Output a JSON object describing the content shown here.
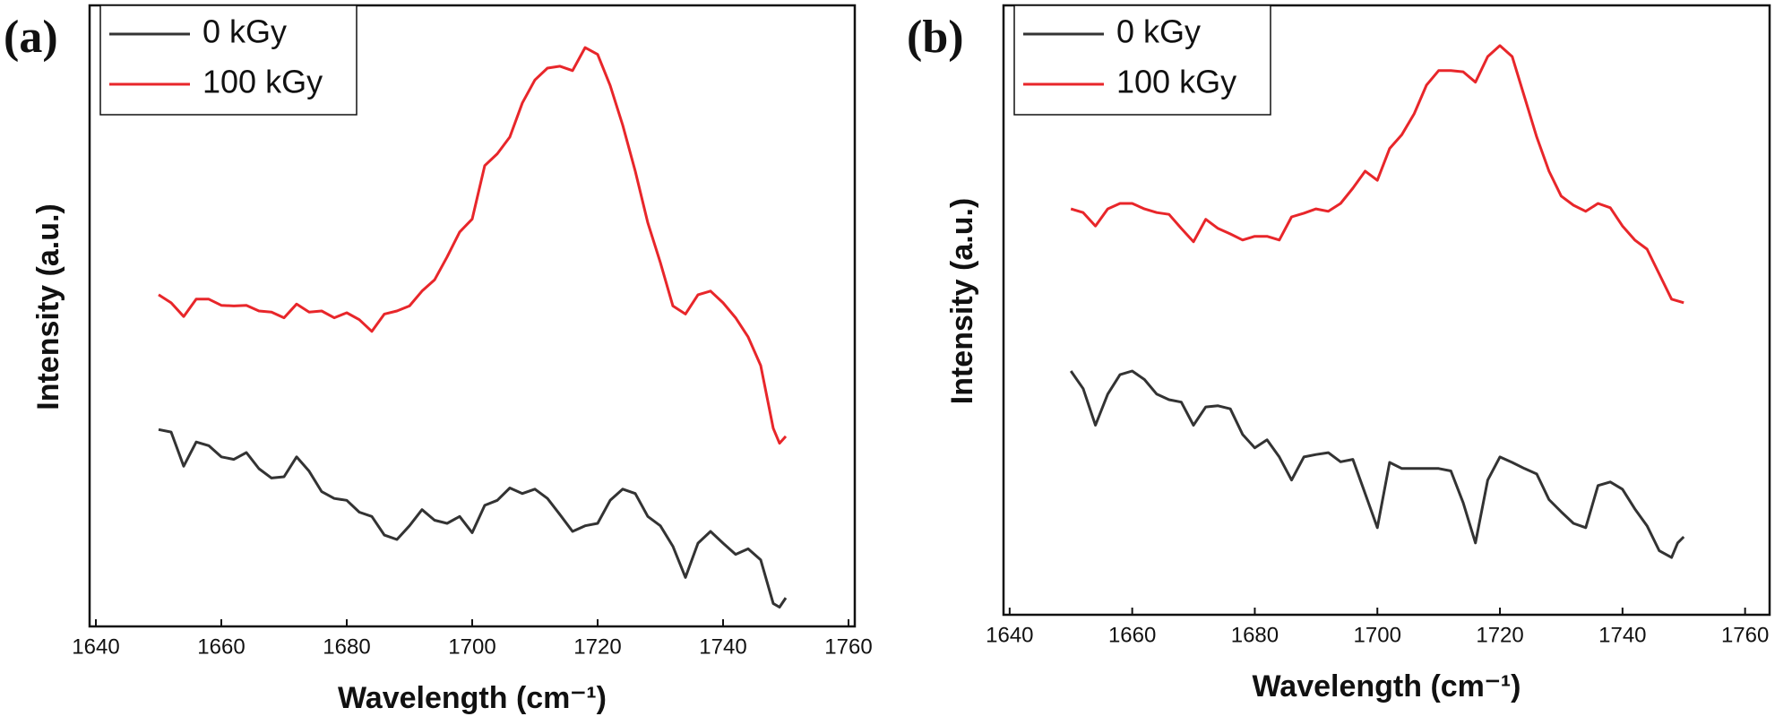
{
  "chart_data": [
    {
      "type": "line",
      "panel_label": "(a)",
      "x_label": "Wavelength (cm⁻¹)",
      "y_label": "Intensity (a.u.)",
      "x": [
        1650,
        1652,
        1654,
        1656,
        1658,
        1660,
        1662,
        1664,
        1666,
        1668,
        1670,
        1672,
        1674,
        1676,
        1678,
        1680,
        1682,
        1684,
        1686,
        1688,
        1690,
        1692,
        1694,
        1696,
        1698,
        1700,
        1702,
        1704,
        1706,
        1708,
        1710,
        1712,
        1714,
        1716,
        1718,
        1720,
        1722,
        1724,
        1726,
        1728,
        1730,
        1732,
        1734,
        1736,
        1738,
        1740,
        1742,
        1744,
        1746,
        1748,
        1749,
        1750
      ],
      "series": [
        {
          "name": "0 kGy",
          "color": "#333333",
          "values": [
            31.7,
            31.3,
            25.8,
            29.7,
            29.1,
            27.3,
            26.9,
            28.0,
            25.4,
            23.9,
            24.1,
            27.3,
            25.0,
            21.7,
            20.6,
            20.3,
            18.4,
            17.7,
            14.7,
            14.0,
            16.2,
            18.8,
            17.1,
            16.6,
            17.7,
            15.1,
            19.5,
            20.3,
            22.3,
            21.4,
            22.1,
            20.6,
            18.0,
            15.3,
            16.2,
            16.6,
            20.3,
            22.1,
            21.4,
            17.7,
            16.2,
            12.9,
            7.9,
            13.4,
            15.3,
            13.4,
            11.6,
            12.5,
            10.7,
            3.7,
            3.1,
            4.6
          ]
        },
        {
          "name": "100 kGy",
          "color": "#e8262a",
          "values": [
            53.4,
            52.1,
            49.9,
            52.7,
            52.7,
            51.7,
            51.6,
            51.7,
            50.8,
            50.6,
            49.7,
            51.9,
            50.6,
            50.8,
            49.7,
            50.5,
            49.4,
            47.5,
            50.3,
            50.8,
            51.6,
            54.0,
            55.8,
            59.5,
            63.5,
            65.6,
            74.2,
            76.1,
            78.8,
            84.3,
            88.0,
            89.9,
            90.2,
            89.5,
            93.2,
            92.1,
            87.1,
            80.7,
            73.3,
            65.0,
            58.6,
            51.6,
            50.3,
            53.4,
            54.0,
            52.1,
            49.7,
            46.6,
            42.0,
            31.9,
            29.5,
            30.6
          ]
        }
      ],
      "xlim": [
        1639,
        1761
      ],
      "xticks": [
        1640,
        1660,
        1680,
        1700,
        1720,
        1740,
        1760
      ],
      "ylim": [
        0,
        100
      ],
      "legend": "upper-left"
    },
    {
      "type": "line",
      "panel_label": "(b)",
      "x_label": "Wavelength (cm⁻¹)",
      "y_label": "Intensity (a.u.)",
      "x": [
        1650,
        1652,
        1654,
        1656,
        1658,
        1660,
        1662,
        1664,
        1666,
        1668,
        1670,
        1672,
        1674,
        1676,
        1678,
        1680,
        1682,
        1684,
        1686,
        1688,
        1690,
        1692,
        1694,
        1696,
        1698,
        1700,
        1702,
        1704,
        1706,
        1708,
        1710,
        1712,
        1714,
        1716,
        1718,
        1720,
        1722,
        1724,
        1726,
        1728,
        1730,
        1732,
        1734,
        1736,
        1738,
        1740,
        1742,
        1744,
        1746,
        1748,
        1749,
        1750
      ],
      "series": [
        {
          "name": "0 kGy",
          "color": "#333333",
          "values": [
            40.0,
            37.1,
            31.1,
            36.2,
            39.4,
            40.0,
            38.6,
            36.2,
            35.3,
            34.9,
            31.1,
            34.1,
            34.3,
            33.8,
            29.6,
            27.4,
            28.7,
            25.9,
            22.1,
            25.9,
            26.3,
            26.6,
            25.1,
            25.5,
            19.9,
            14.3,
            25.0,
            24.0,
            24.0,
            24.0,
            24.0,
            23.6,
            18.4,
            11.8,
            22.1,
            25.9,
            25.0,
            24.0,
            23.1,
            18.9,
            16.9,
            15.0,
            14.3,
            21.2,
            21.8,
            20.6,
            17.4,
            14.6,
            10.5,
            9.4,
            11.8,
            12.8
          ]
        },
        {
          "name": "100 kGy",
          "color": "#e8262a",
          "values": [
            66.6,
            66.0,
            63.8,
            66.6,
            67.5,
            67.5,
            66.6,
            66.0,
            65.7,
            63.4,
            61.2,
            64.9,
            63.4,
            62.5,
            61.5,
            62.1,
            62.1,
            61.5,
            65.3,
            65.9,
            66.6,
            66.2,
            67.5,
            70.0,
            72.8,
            71.3,
            76.5,
            78.8,
            82.2,
            86.9,
            89.3,
            89.3,
            89.1,
            87.4,
            91.6,
            93.4,
            91.6,
            85.0,
            78.4,
            72.8,
            68.7,
            67.2,
            66.2,
            67.5,
            66.8,
            63.8,
            61.5,
            60.0,
            55.9,
            51.8,
            51.5,
            51.2
          ]
        }
      ],
      "xlim": [
        1639,
        1764
      ],
      "xticks": [
        1640,
        1660,
        1680,
        1700,
        1720,
        1740,
        1760
      ],
      "ylim": [
        0,
        100
      ],
      "legend": "upper-left"
    }
  ]
}
